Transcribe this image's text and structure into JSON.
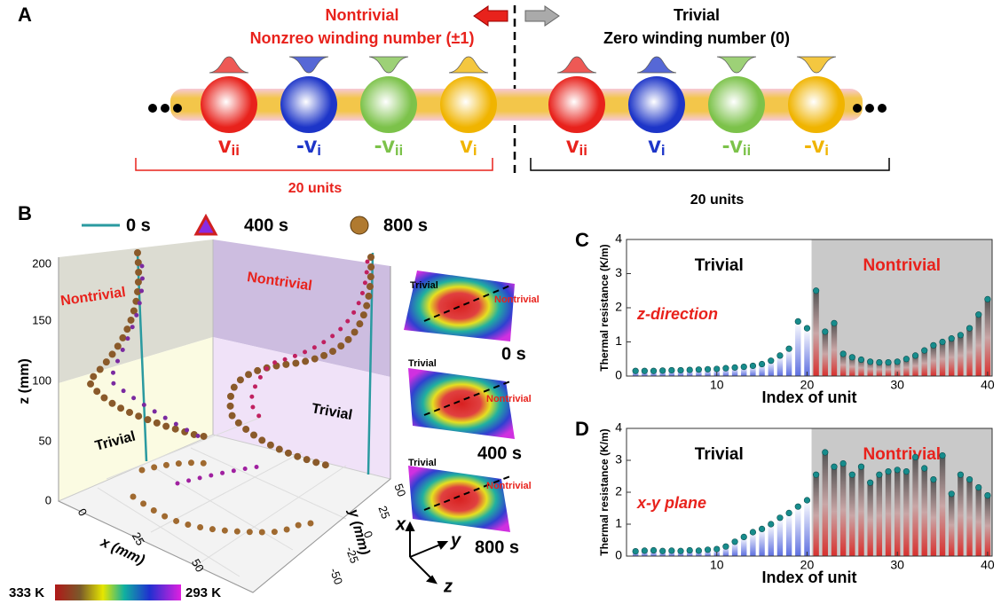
{
  "panel_a": {
    "label": "A",
    "left": {
      "title": "Nontrivial",
      "subtitle": "Nonzreo winding number (±1)",
      "units": "20 units",
      "sites": [
        {
          "main": "v",
          "sub": "ii",
          "color": "#e8221c"
        },
        {
          "main": "-v",
          "sub": "i",
          "color": "#1d35c8"
        },
        {
          "main": "-v",
          "sub": "ii",
          "color": "#7cc24a"
        },
        {
          "main": "v",
          "sub": "i",
          "color": "#f0b400"
        }
      ]
    },
    "right": {
      "title": "Trivial",
      "subtitle": "Zero winding number (0)",
      "units": "20 units",
      "sites": [
        {
          "main": "v",
          "sub": "ii",
          "color": "#e8221c"
        },
        {
          "main": "v",
          "sub": "i",
          "color": "#1d35c8"
        },
        {
          "main": "-v",
          "sub": "ii",
          "color": "#7cc24a"
        },
        {
          "main": "-v",
          "sub": "i",
          "color": "#f0b400"
        }
      ]
    }
  },
  "panel_b": {
    "label": "B",
    "legend": [
      "0 s",
      "400 s",
      "800 s"
    ],
    "z_label": "z (mm)",
    "x_label": "x (mm)",
    "y_label": "y (mm)",
    "zticks": [
      0,
      50,
      100,
      150,
      200
    ],
    "xticks": [
      0,
      25,
      50
    ],
    "yticks": [
      50,
      25,
      0,
      -25,
      -50
    ],
    "wall_labels": [
      "Nontrivial",
      "Trivial",
      "Nontrivial",
      "Trivial"
    ],
    "maps": [
      {
        "trivial": "Trivial",
        "nontrivial": "Nontrivial",
        "time": "0 s"
      },
      {
        "trivial": "Trivial",
        "nontrivial": "Nontrivial",
        "time": "400 s"
      },
      {
        "trivial": "Trivial",
        "nontrivial": "Nontrivial",
        "time": "800 s"
      }
    ],
    "axes": [
      "x",
      "y",
      "z"
    ],
    "colorbar": [
      "333 K",
      "293 K"
    ]
  },
  "chart_data": [
    {
      "type": "bar",
      "label": "C",
      "xlabel": "Index of unit",
      "ylabel": "Thermal resistance (K/m)",
      "annotation": "z-direction",
      "x": [
        1,
        2,
        3,
        4,
        5,
        6,
        7,
        8,
        9,
        10,
        11,
        12,
        13,
        14,
        15,
        16,
        17,
        18,
        19,
        20,
        21,
        22,
        23,
        24,
        25,
        26,
        27,
        28,
        29,
        30,
        31,
        32,
        33,
        34,
        35,
        36,
        37,
        38,
        39,
        40
      ],
      "values": [
        0.15,
        0.15,
        0.15,
        0.16,
        0.17,
        0.17,
        0.18,
        0.19,
        0.2,
        0.21,
        0.23,
        0.25,
        0.27,
        0.3,
        0.35,
        0.45,
        0.6,
        0.8,
        1.6,
        1.4,
        2.5,
        1.3,
        1.55,
        0.65,
        0.55,
        0.48,
        0.42,
        0.4,
        0.4,
        0.42,
        0.5,
        0.6,
        0.75,
        0.9,
        1.0,
        1.1,
        1.2,
        1.4,
        1.8,
        2.25
      ],
      "xlim": [
        0,
        40.5
      ],
      "ylim": [
        0,
        4
      ],
      "xticks": [
        10,
        20,
        30,
        40
      ],
      "yticks": [
        0,
        1,
        2,
        3,
        4
      ],
      "regions": [
        {
          "label": "Trivial",
          "range": [
            0,
            20.5
          ],
          "color": "#ffffff",
          "text_color": "#000000"
        },
        {
          "label": "Nontrivial",
          "range": [
            20.5,
            40.5
          ],
          "color": "#c9c9c9",
          "text_color": "#e8221c"
        }
      ]
    },
    {
      "type": "bar",
      "label": "D",
      "xlabel": "Index of unit",
      "ylabel": "Thermal resistance (K/m)",
      "annotation": "x-y plane",
      "x": [
        1,
        2,
        3,
        4,
        5,
        6,
        7,
        8,
        9,
        10,
        11,
        12,
        13,
        14,
        15,
        16,
        17,
        18,
        19,
        20,
        21,
        22,
        23,
        24,
        25,
        26,
        27,
        28,
        29,
        30,
        31,
        32,
        33,
        34,
        35,
        36,
        37,
        38,
        39,
        40
      ],
      "values": [
        0.15,
        0.17,
        0.18,
        0.16,
        0.17,
        0.16,
        0.18,
        0.17,
        0.2,
        0.22,
        0.3,
        0.45,
        0.6,
        0.75,
        0.85,
        1.0,
        1.2,
        1.35,
        1.55,
        1.75,
        2.55,
        3.25,
        2.8,
        2.9,
        2.55,
        2.8,
        2.3,
        2.55,
        2.65,
        2.7,
        2.65,
        3.1,
        2.75,
        2.4,
        3.15,
        1.95,
        2.55,
        2.4,
        2.15,
        1.9
      ],
      "xlim": [
        0,
        40.5
      ],
      "ylim": [
        0,
        4
      ],
      "xticks": [
        10,
        20,
        30,
        40
      ],
      "yticks": [
        0,
        1,
        2,
        3,
        4
      ],
      "regions": [
        {
          "label": "Trivial",
          "range": [
            0,
            20.5
          ],
          "color": "#ffffff",
          "text_color": "#000000"
        },
        {
          "label": "Nontrivial",
          "range": [
            20.5,
            40.5
          ],
          "color": "#c9c9c9",
          "text_color": "#e8221c"
        }
      ]
    }
  ]
}
